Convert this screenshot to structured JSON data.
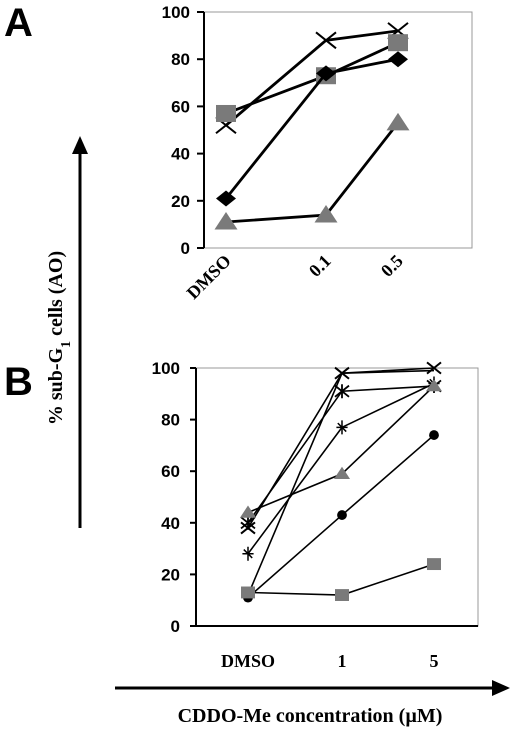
{
  "ylabel_main": "% sub-G",
  "ylabel_subscript": "1",
  "ylabel_suffix": " cells (AO)",
  "xlabel": "CDDO-Me concentration (µM)",
  "chart_data": [
    {
      "panel": "A",
      "type": "line",
      "categories": [
        "DMSO",
        "0.1",
        "0.5"
      ],
      "ylim": [
        0,
        100
      ],
      "yticks": [
        0,
        20,
        40,
        60,
        80,
        100
      ],
      "category_label_rotation": -45,
      "series": [
        {
          "marker": "x",
          "color": "#000000",
          "values": [
            52,
            88,
            92
          ]
        },
        {
          "marker": "square",
          "color": "#7a7a7a",
          "values": [
            57,
            73,
            87
          ]
        },
        {
          "marker": "diamond",
          "color": "#000000",
          "values": [
            21,
            74,
            80
          ]
        },
        {
          "marker": "triangle",
          "color": "#7a7a7a",
          "values": [
            11,
            14,
            53
          ]
        }
      ]
    },
    {
      "panel": "B",
      "type": "line",
      "categories": [
        "DMSO",
        "1",
        "5"
      ],
      "ylim": [
        0,
        100
      ],
      "yticks": [
        0,
        20,
        40,
        60,
        80,
        100
      ],
      "series": [
        {
          "marker": "x",
          "color": "#000000",
          "values": [
            38,
            98,
            100
          ]
        },
        {
          "marker": "asterisk",
          "color": "#000000",
          "values": [
            40,
            91,
            93
          ]
        },
        {
          "marker": "star",
          "color": "#000000",
          "values": [
            28,
            77,
            94
          ]
        },
        {
          "marker": "none",
          "color": "#000000",
          "values": [
            12,
            98,
            99
          ]
        },
        {
          "marker": "triangle",
          "color": "#7a7a7a",
          "values": [
            44,
            59,
            93
          ]
        },
        {
          "marker": "circle",
          "color": "#000000",
          "values": [
            11,
            43,
            74
          ]
        },
        {
          "marker": "square",
          "color": "#7a7a7a",
          "values": [
            13,
            12,
            24
          ]
        }
      ]
    }
  ]
}
